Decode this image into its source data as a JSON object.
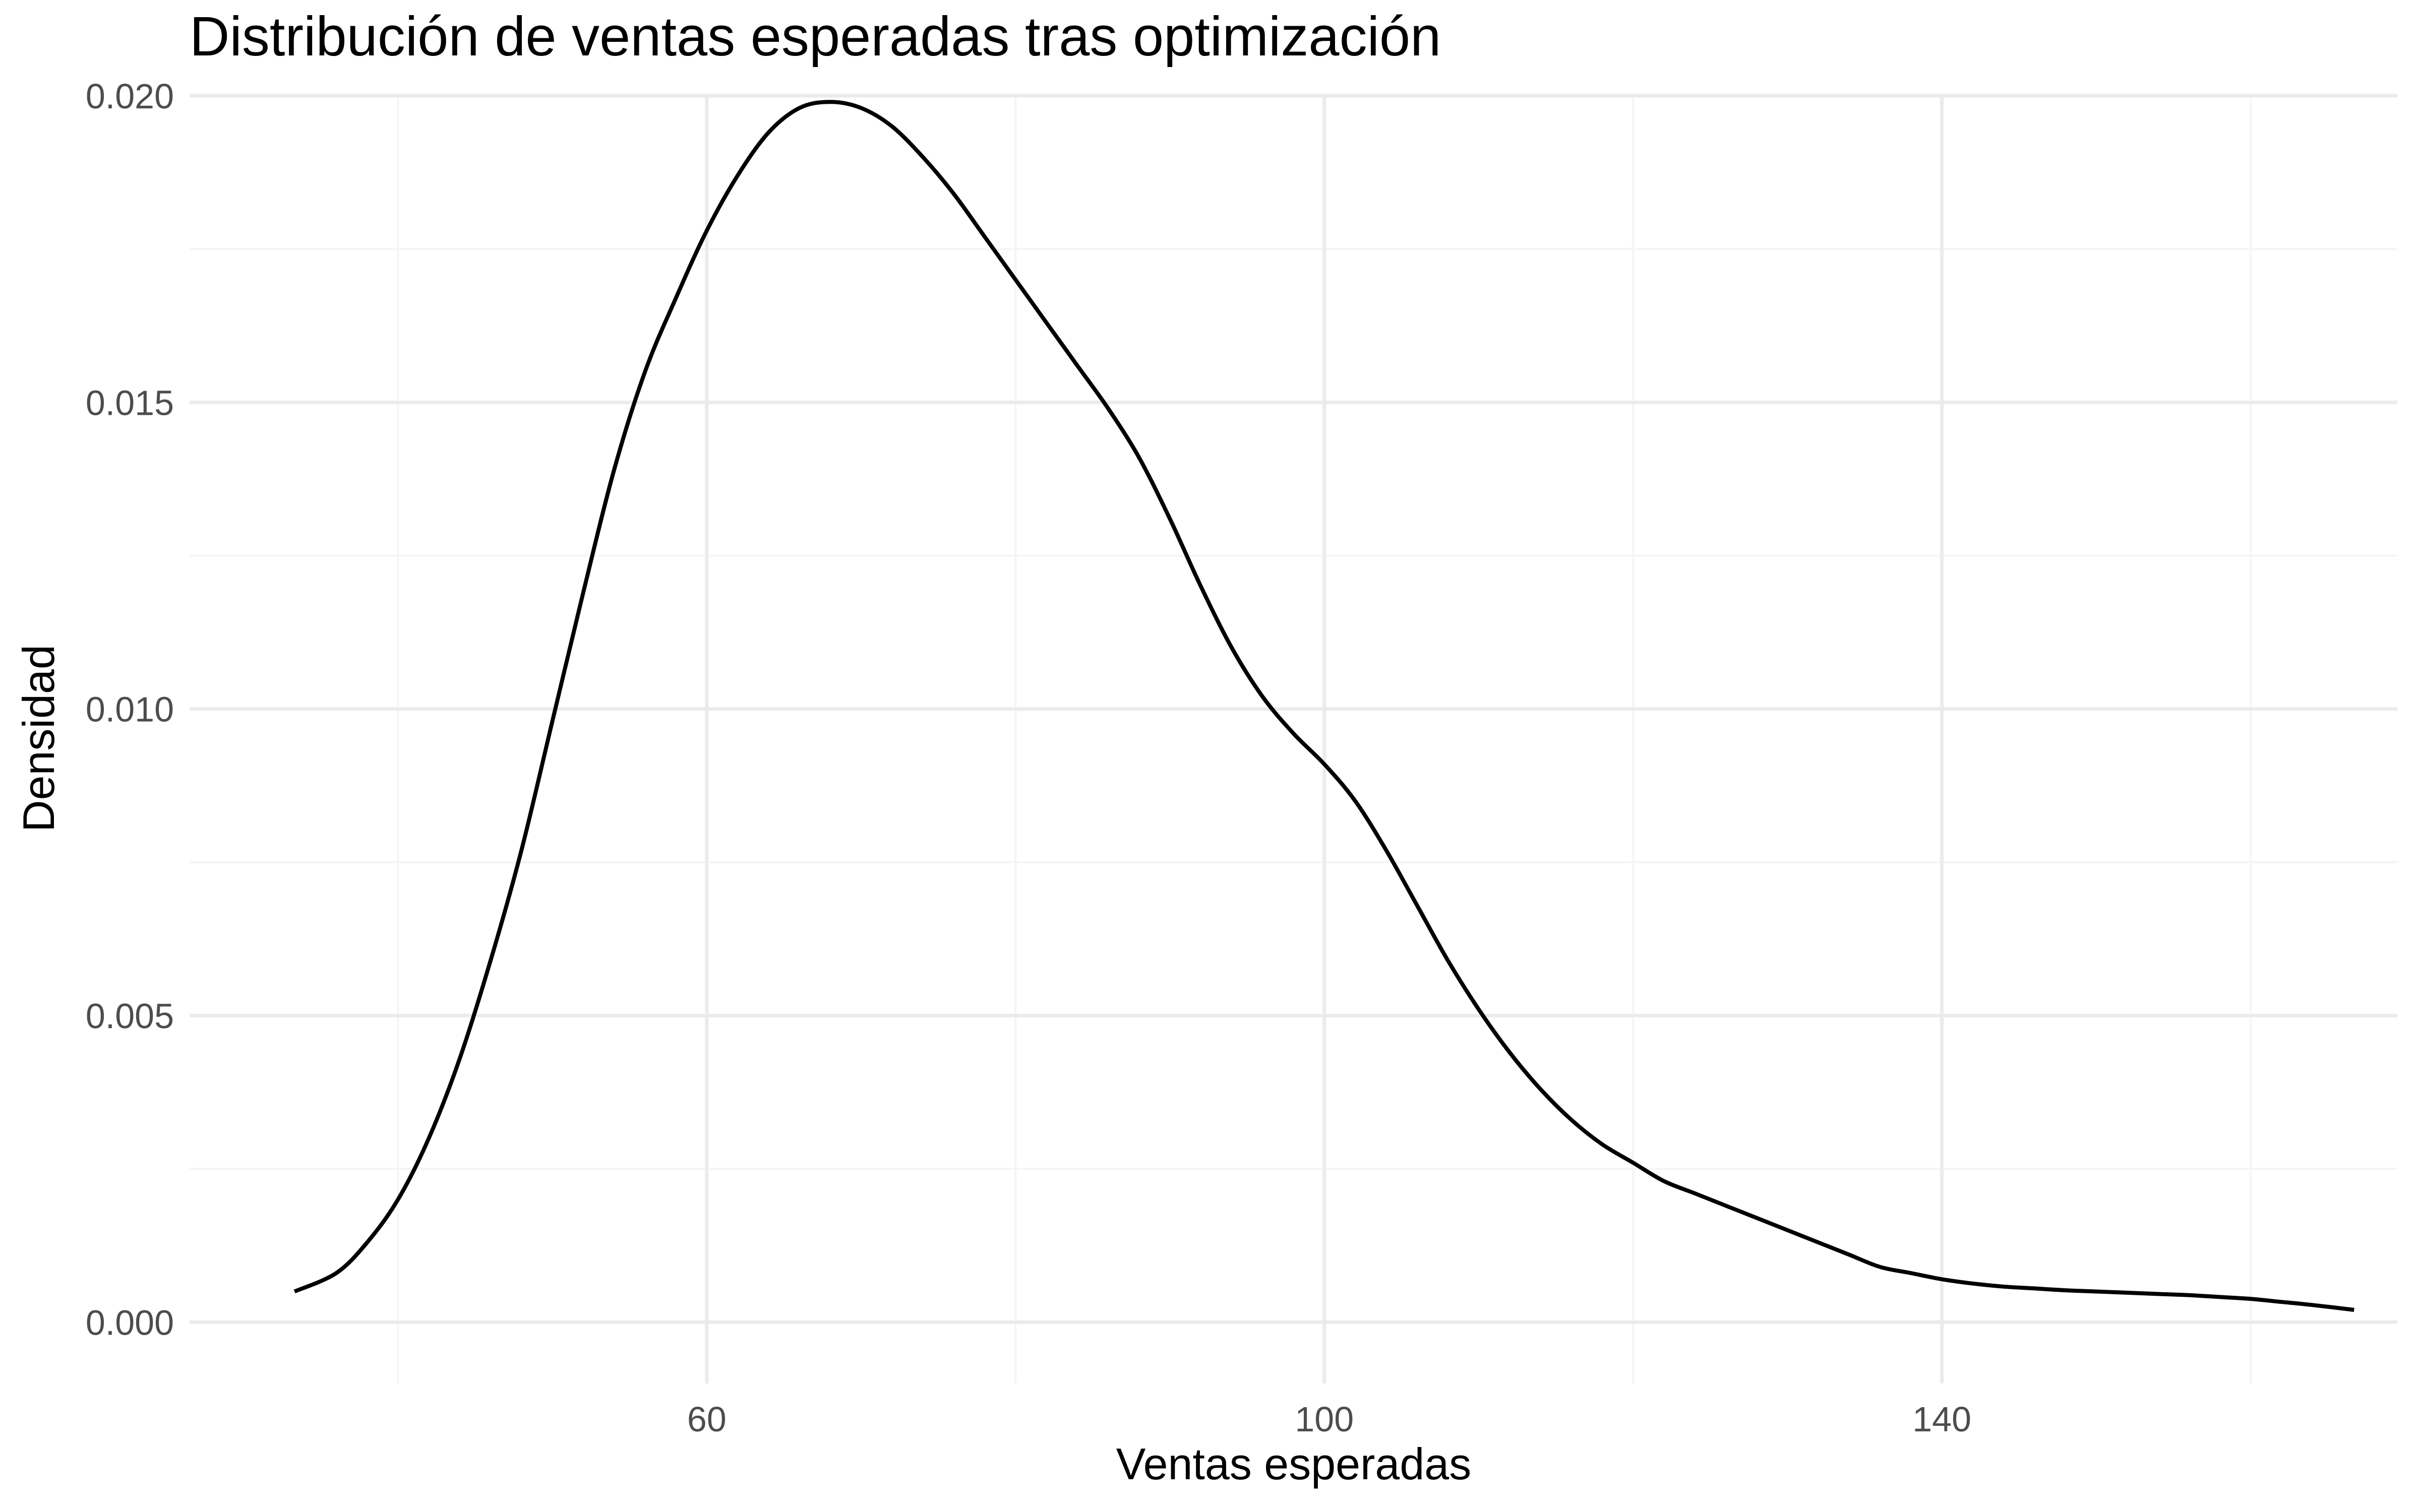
{
  "chart_data": {
    "type": "line",
    "title": "Distribución de ventas esperadas tras optimización",
    "xlabel": "Ventas esperadas",
    "ylabel": "Densidad",
    "xlim": [
      26.5,
      169.5
    ],
    "ylim": [
      -0.001,
      0.02
    ],
    "x_ticks": [
      60,
      100,
      140
    ],
    "x_tick_labels": [
      "60",
      "100",
      "140"
    ],
    "x_minor_ticks": [
      40,
      80,
      120,
      160
    ],
    "y_ticks": [
      0.0,
      0.005,
      0.01,
      0.015,
      0.02
    ],
    "y_tick_labels": [
      "0.000",
      "0.005",
      "0.010",
      "0.015",
      "0.020"
    ],
    "y_minor_ticks": [
      0.0025,
      0.0075,
      0.0125,
      0.0175
    ],
    "grid": true,
    "legend": "none",
    "colors": {
      "line": "#000000",
      "grid_major": "#ebebeb",
      "grid_minor": "#f5f5f5",
      "background": "#ffffff"
    },
    "series": [
      {
        "x": [
          33.3,
          36,
          38,
          40,
          42,
          44,
          46,
          48,
          50,
          52,
          54,
          56,
          58,
          60,
          62,
          64,
          66,
          68,
          70,
          72,
          74,
          76,
          78,
          80,
          82,
          84,
          86,
          88,
          90,
          92,
          94,
          96,
          98,
          100,
          102,
          104,
          106,
          108,
          110,
          112,
          114,
          116,
          118,
          120,
          122,
          124,
          126,
          128,
          130,
          132,
          134,
          136,
          138,
          140,
          142,
          144,
          146,
          148,
          150,
          152,
          154,
          156,
          158,
          160,
          162,
          164,
          166.7
        ],
        "y": [
          0.0005,
          0.0008,
          0.0013,
          0.002,
          0.003,
          0.0043,
          0.0059,
          0.0077,
          0.0098,
          0.0119,
          0.0139,
          0.0155,
          0.0167,
          0.0178,
          0.0187,
          0.0194,
          0.0198,
          0.0199,
          0.0198,
          0.0195,
          0.019,
          0.0184,
          0.0177,
          0.017,
          0.0163,
          0.0156,
          0.0149,
          0.0141,
          0.0131,
          0.012,
          0.011,
          0.0102,
          0.0096,
          0.0091,
          0.0085,
          0.0077,
          0.0068,
          0.0059,
          0.0051,
          0.0044,
          0.0038,
          0.0033,
          0.0029,
          0.0026,
          0.0023,
          0.0021,
          0.0019,
          0.0017,
          0.0015,
          0.0013,
          0.0011,
          0.0009,
          0.0008,
          0.0007,
          0.00063,
          0.00058,
          0.00055,
          0.00052,
          0.0005,
          0.00048,
          0.00046,
          0.00044,
          0.00041,
          0.00038,
          0.00033,
          0.00028,
          0.0002
        ]
      }
    ]
  }
}
